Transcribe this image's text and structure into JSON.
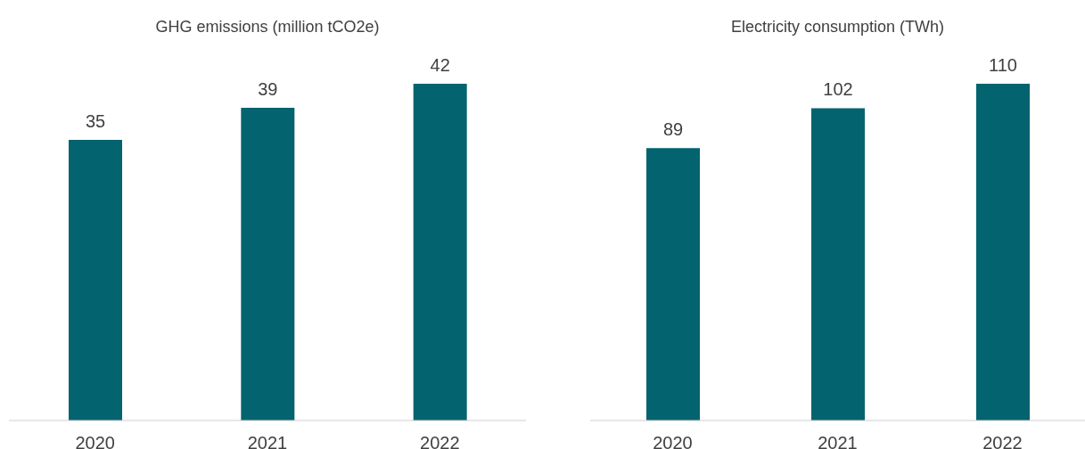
{
  "chart_data": [
    {
      "type": "bar",
      "title": "GHG emissions (million tCO2e)",
      "categories": [
        "2020",
        "2021",
        "2022"
      ],
      "values": [
        35,
        39,
        42
      ],
      "color": "#03636f",
      "data_labels": true,
      "grid": false,
      "legend": false
    },
    {
      "type": "bar",
      "title": "Electricity consumption (TWh)",
      "categories": [
        "2020",
        "2021",
        "2022"
      ],
      "values": [
        89,
        102,
        110
      ],
      "color": "#03636f",
      "data_labels": true,
      "grid": false,
      "legend": false
    }
  ]
}
